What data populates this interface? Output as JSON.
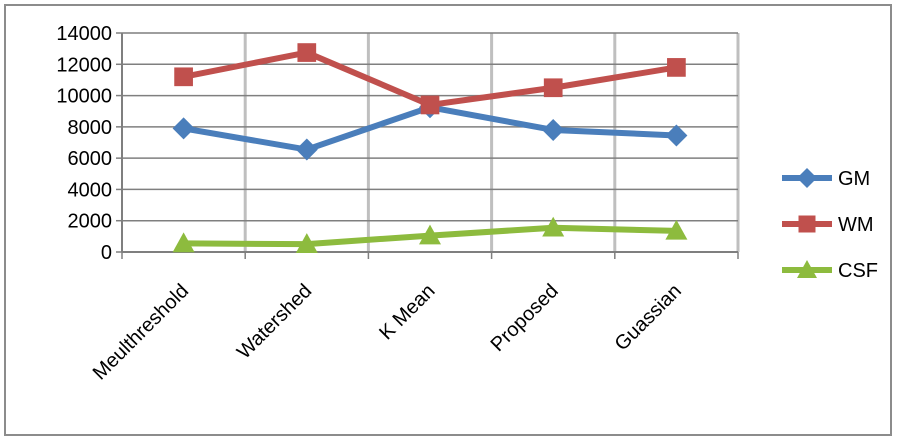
{
  "chart_data": {
    "type": "line",
    "title": "",
    "xlabel": "",
    "ylabel": "",
    "categories": [
      "Meulthreshold",
      "Watershed",
      "K Mean",
      "Proposed",
      "Guassian"
    ],
    "ylim": [
      0,
      14000
    ],
    "yticks": [
      0,
      2000,
      4000,
      6000,
      8000,
      10000,
      12000,
      14000
    ],
    "grid": "on",
    "legend_position": "right",
    "series": [
      {
        "name": "GM",
        "color": "#4a7ebb",
        "marker": "diamond",
        "values": [
          7900,
          6550,
          9250,
          7800,
          7450
        ]
      },
      {
        "name": "WM",
        "color": "#c0504d",
        "marker": "square",
        "values": [
          11200,
          12750,
          9400,
          10500,
          11800
        ]
      },
      {
        "name": "CSF",
        "color": "#8dbb3e",
        "marker": "triangle",
        "values": [
          550,
          500,
          1050,
          1550,
          1350
        ]
      }
    ]
  }
}
